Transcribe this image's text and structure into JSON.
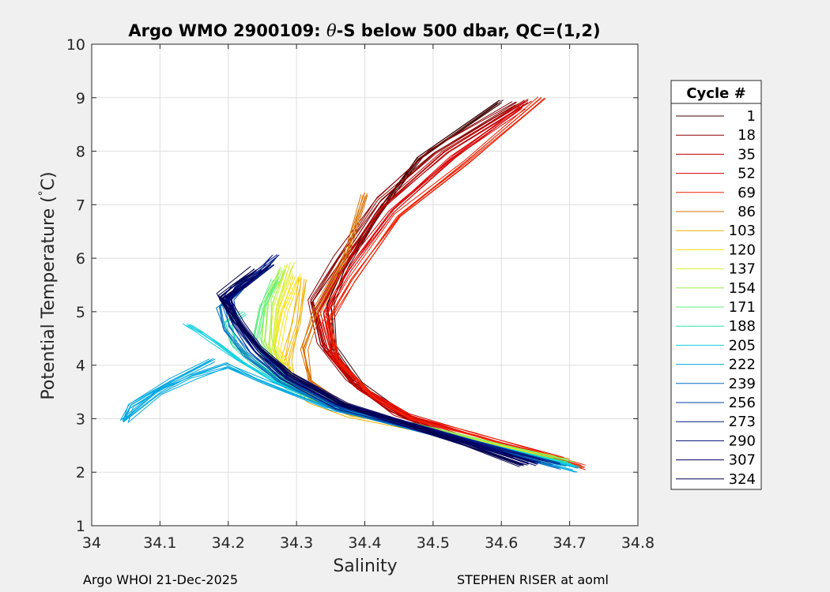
{
  "chart_data": {
    "type": "line",
    "title": "Argo WMO 2900109: θ-S below 500 dbar,  QC=(1,2)",
    "title_parts": {
      "prefix": "Argo WMO 2900109: ",
      "symbol": "θ",
      "suffix": "-S below 500 dbar,  QC=(1,2)"
    },
    "xlabel": "Salinity",
    "ylabel": "Potential Temperature (°C)",
    "ylabel_parts": {
      "main": "Potential Temperature (",
      "deg": "°",
      "unit": "C)"
    },
    "xlim": [
      34,
      34.8
    ],
    "ylim": [
      1,
      10
    ],
    "xticks": [
      "34",
      "34.1",
      "34.2",
      "34.3",
      "34.4",
      "34.5",
      "34.6",
      "34.7",
      "34.8"
    ],
    "yticks": [
      "1",
      "2",
      "3",
      "4",
      "5",
      "6",
      "7",
      "8",
      "9",
      "10"
    ],
    "grid": true,
    "legend": {
      "title": "Cycle #",
      "placement": "outside-right",
      "entries": [
        {
          "label": "1",
          "color": "#3c0000"
        },
        {
          "label": "18",
          "color": "#8b0000"
        },
        {
          "label": "35",
          "color": "#b80000"
        },
        {
          "label": "52",
          "color": "#d80000"
        },
        {
          "label": "69",
          "color": "#f02000"
        },
        {
          "label": "86",
          "color": "#d87000"
        },
        {
          "label": "103",
          "color": "#f0b000"
        },
        {
          "label": "120",
          "color": "#ffe000"
        },
        {
          "label": "137",
          "color": "#d8f030"
        },
        {
          "label": "154",
          "color": "#a0f050"
        },
        {
          "label": "171",
          "color": "#60f080"
        },
        {
          "label": "188",
          "color": "#30e0a8"
        },
        {
          "label": "205",
          "color": "#10d0e0"
        },
        {
          "label": "222",
          "color": "#00a8e0"
        },
        {
          "label": "239",
          "color": "#0070c0"
        },
        {
          "label": "256",
          "color": "#0040a0"
        },
        {
          "label": "273",
          "color": "#001880"
        },
        {
          "label": "290",
          "color": "#000870"
        },
        {
          "label": "307",
          "color": "#000060"
        },
        {
          "label": "324",
          "color": "#000050"
        }
      ]
    },
    "series": [
      {
        "name": "1",
        "color": "#3c0000",
        "x": [
          34.62,
          34.5,
          34.45,
          34.39,
          34.355,
          34.35,
          34.37,
          34.42,
          34.48,
          34.6
        ],
        "y": [
          2.3,
          2.75,
          3.1,
          3.65,
          4.3,
          5.1,
          5.8,
          6.8,
          7.85,
          8.9
        ]
      },
      {
        "name": "18",
        "color": "#8b0000",
        "x": [
          34.63,
          34.5,
          34.44,
          34.38,
          34.335,
          34.32,
          34.36,
          34.42,
          34.5,
          34.62
        ],
        "y": [
          2.35,
          2.8,
          3.15,
          3.7,
          4.4,
          5.2,
          6.0,
          7.1,
          8.0,
          8.9
        ]
      },
      {
        "name": "35",
        "color": "#b80000",
        "x": [
          34.66,
          34.52,
          34.45,
          34.39,
          34.345,
          34.33,
          34.37,
          34.43,
          34.52,
          34.64
        ],
        "y": [
          2.3,
          2.75,
          3.1,
          3.6,
          4.3,
          5.0,
          5.9,
          7.0,
          8.0,
          8.95
        ]
      },
      {
        "name": "52",
        "color": "#d80000",
        "x": [
          34.69,
          34.55,
          34.46,
          34.4,
          34.355,
          34.34,
          34.375,
          34.44,
          34.53,
          34.63
        ],
        "y": [
          2.25,
          2.75,
          3.1,
          3.55,
          4.2,
          5.0,
          5.8,
          6.9,
          7.9,
          8.85
        ]
      },
      {
        "name": "69",
        "color": "#f02000",
        "x": [
          34.72,
          34.56,
          34.47,
          34.41,
          34.36,
          34.345,
          34.38,
          34.45,
          34.55,
          34.66
        ],
        "y": [
          2.1,
          2.7,
          3.0,
          3.45,
          4.1,
          4.8,
          5.6,
          6.8,
          7.8,
          9.0
        ]
      },
      {
        "name": "86",
        "color": "#d87000",
        "x": [
          34.7,
          34.5,
          34.42,
          34.36,
          34.32,
          34.31,
          34.33,
          34.37,
          34.4
        ],
        "y": [
          2.2,
          2.75,
          3.0,
          3.3,
          3.7,
          4.3,
          5.0,
          6.0,
          7.2
        ]
      },
      {
        "name": "103",
        "color": "#f0b000",
        "x": [
          34.68,
          34.48,
          34.38,
          34.32,
          34.29,
          34.285,
          34.3,
          34.31
        ],
        "y": [
          2.25,
          2.8,
          3.05,
          3.35,
          3.7,
          4.1,
          4.8,
          5.6
        ]
      },
      {
        "name": "120",
        "color": "#ffe000",
        "x": [
          34.68,
          34.5,
          34.4,
          34.33,
          34.29,
          34.27,
          34.28,
          34.3
        ],
        "y": [
          2.25,
          2.8,
          3.1,
          3.4,
          3.8,
          4.3,
          5.0,
          5.7
        ]
      },
      {
        "name": "137",
        "color": "#d8f030",
        "x": [
          34.69,
          34.5,
          34.39,
          34.32,
          34.28,
          34.265,
          34.27,
          34.29
        ],
        "y": [
          2.2,
          2.75,
          3.1,
          3.45,
          3.85,
          4.35,
          5.1,
          5.9
        ]
      },
      {
        "name": "154",
        "color": "#a0f050",
        "x": [
          34.69,
          34.51,
          34.39,
          34.31,
          34.27,
          34.255,
          34.26,
          34.28
        ],
        "y": [
          2.2,
          2.75,
          3.1,
          3.5,
          3.95,
          4.45,
          5.2,
          5.8
        ]
      },
      {
        "name": "171",
        "color": "#60f080",
        "x": [
          34.7,
          34.51,
          34.38,
          34.3,
          34.26,
          34.24,
          34.25,
          34.27
        ],
        "y": [
          2.15,
          2.75,
          3.15,
          3.55,
          4.0,
          4.5,
          5.1,
          5.6
        ]
      },
      {
        "name": "188",
        "color": "#30e0a8",
        "x": [
          34.7,
          34.5,
          34.37,
          34.29,
          34.24,
          34.21,
          34.2,
          34.22
        ],
        "y": [
          2.15,
          2.75,
          3.15,
          3.6,
          4.05,
          4.4,
          4.8,
          5.0
        ]
      },
      {
        "name": "205",
        "color": "#10d0e0",
        "x": [
          34.71,
          34.5,
          34.36,
          34.27,
          34.22,
          34.18,
          34.16,
          34.14
        ],
        "y": [
          2.1,
          2.75,
          3.2,
          3.65,
          4.05,
          4.4,
          4.6,
          4.75
        ]
      },
      {
        "name": "222",
        "color": "#00a8e0",
        "x": [
          34.71,
          34.5,
          34.35,
          34.25,
          34.2,
          34.15,
          34.1,
          34.05,
          34.06,
          34.12,
          34.18
        ],
        "y": [
          2.05,
          2.75,
          3.2,
          3.7,
          4.0,
          3.8,
          3.5,
          2.95,
          3.25,
          3.7,
          4.1
        ]
      },
      {
        "name": "239",
        "color": "#0070c0",
        "x": [
          34.69,
          34.5,
          34.36,
          34.28,
          34.23,
          34.2,
          34.19,
          34.21
        ],
        "y": [
          2.1,
          2.75,
          3.2,
          3.7,
          4.2,
          4.7,
          5.1,
          5.3
        ]
      },
      {
        "name": "256",
        "color": "#0040a0",
        "x": [
          34.68,
          34.5,
          34.36,
          34.28,
          34.24,
          34.21,
          34.2,
          34.22,
          34.26
        ],
        "y": [
          2.15,
          2.75,
          3.2,
          3.75,
          4.25,
          4.75,
          5.2,
          5.45,
          5.85
        ]
      },
      {
        "name": "273",
        "color": "#001880",
        "x": [
          34.66,
          34.5,
          34.36,
          34.28,
          34.24,
          34.21,
          34.195,
          34.21,
          34.25,
          34.27
        ],
        "y": [
          2.2,
          2.75,
          3.25,
          3.8,
          4.3,
          4.8,
          5.2,
          5.45,
          5.8,
          6.05
        ]
      },
      {
        "name": "290",
        "color": "#000870",
        "x": [
          34.65,
          34.5,
          34.37,
          34.29,
          34.245,
          34.215,
          34.2,
          34.215,
          34.25
        ],
        "y": [
          2.15,
          2.75,
          3.25,
          3.8,
          4.3,
          4.8,
          5.2,
          5.4,
          5.75
        ]
      },
      {
        "name": "307",
        "color": "#000060",
        "x": [
          34.64,
          34.5,
          34.37,
          34.29,
          34.245,
          34.215,
          34.195,
          34.22,
          34.26
        ],
        "y": [
          2.15,
          2.75,
          3.25,
          3.8,
          4.3,
          4.8,
          5.25,
          5.45,
          5.85
        ]
      },
      {
        "name": "324",
        "color": "#000050",
        "x": [
          34.63,
          34.5,
          34.37,
          34.29,
          34.245,
          34.21,
          34.19,
          34.21,
          34.24
        ],
        "y": [
          2.15,
          2.75,
          3.25,
          3.85,
          4.35,
          4.85,
          5.3,
          5.5,
          5.8
        ]
      }
    ]
  },
  "footer": {
    "left": "Argo WHOI 21-Dec-2025",
    "right": "STEPHEN RISER at aoml"
  }
}
